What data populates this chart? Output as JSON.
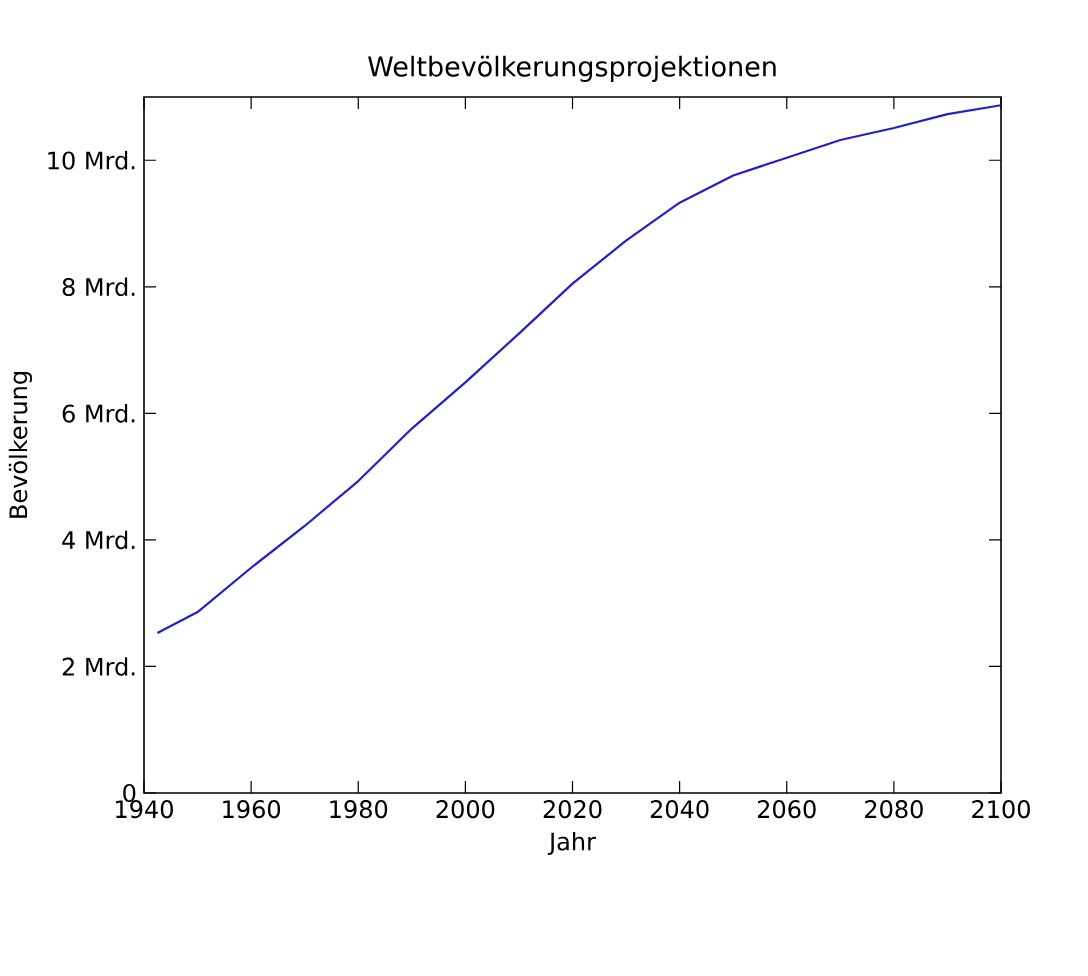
{
  "chart_data": {
    "type": "line",
    "title": "Weltbevölkerungsprojektionen",
    "xlabel": "Jahr",
    "ylabel": "Bevölkerung",
    "color": "#2020cc",
    "x": [
      1942.5,
      1950,
      1960,
      1970,
      1980,
      1990,
      2000,
      2010,
      2020,
      2030,
      2040,
      2050,
      2060,
      2070,
      2080,
      2090,
      2100
    ],
    "values": [
      2.53,
      2.86,
      3.56,
      4.22,
      4.93,
      5.76,
      6.49,
      7.26,
      8.05,
      8.73,
      9.33,
      9.76,
      10.04,
      10.32,
      10.51,
      10.73,
      10.87
    ],
    "xlim": [
      1940,
      2100
    ],
    "ylim": [
      0,
      11
    ],
    "xticks": [
      1940,
      1960,
      1980,
      2000,
      2020,
      2040,
      2060,
      2080,
      2100
    ],
    "yticks": [
      0,
      {
        "value": 2,
        "label": "2 Mrd."
      },
      {
        "value": 4,
        "label": "4 Mrd."
      },
      {
        "value": 6,
        "label": "6 Mrd."
      },
      {
        "value": 8,
        "label": "8 Mrd."
      },
      {
        "value": 10,
        "label": "10 Mrd."
      }
    ]
  }
}
